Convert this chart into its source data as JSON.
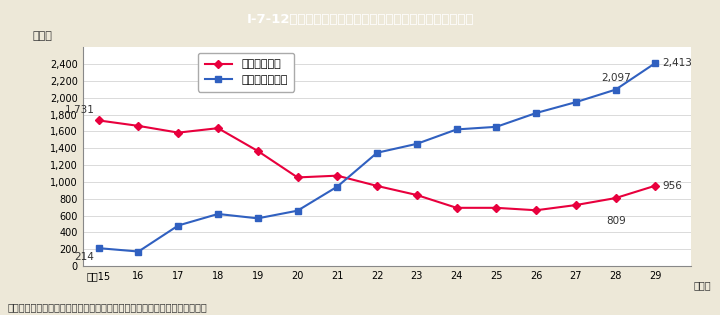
{
  "title": "I-7-12図　児童買春及び児童ポルノ事件の検挙件数の推移",
  "title_bg_color": "#29b6c8",
  "title_text_color": "#ffffff",
  "bg_color": "#ede8d8",
  "plot_bg_color": "#ffffff",
  "ylabel": "（件）",
  "years": [
    15,
    16,
    17,
    18,
    19,
    20,
    21,
    22,
    23,
    24,
    25,
    26,
    27,
    28,
    29
  ],
  "xlabels": [
    "平成15",
    "16",
    "17",
    "18",
    "19",
    "20",
    "21",
    "22",
    "23",
    "24",
    "25",
    "26",
    "27",
    "28",
    "29"
  ],
  "child_prostitution": [
    1731,
    1666,
    1586,
    1639,
    1368,
    1054,
    1075,
    953,
    845,
    693,
    693,
    664,
    726,
    809,
    956
  ],
  "child_pornography": [
    214,
    174,
    483,
    620,
    568,
    659,
    945,
    1347,
    1453,
    1624,
    1655,
    1819,
    1948,
    2097,
    2413
  ],
  "prostitution_color": "#e8003d",
  "pornography_color": "#3060c0",
  "legend_prostitution": "児童買春事件",
  "legend_pornography": "児童ポルノ事件",
  "ylim": [
    0,
    2600
  ],
  "yticks": [
    0,
    200,
    400,
    600,
    800,
    1000,
    1200,
    1400,
    1600,
    1800,
    2000,
    2200,
    2400
  ],
  "note": "（備考）警察庁「少年非行，児童虐待及び子供の性被害の状況」より作成。",
  "ann_prost_first": [
    15,
    1731,
    "1,731"
  ],
  "ann_porn_first": [
    15,
    214,
    "214"
  ],
  "ann_prost_28": [
    28,
    809,
    "809"
  ],
  "ann_prost_29": [
    29,
    956,
    "956"
  ],
  "ann_porn_28": [
    28,
    2097,
    "2,097"
  ],
  "ann_porn_29": [
    29,
    2413,
    "2,413"
  ]
}
